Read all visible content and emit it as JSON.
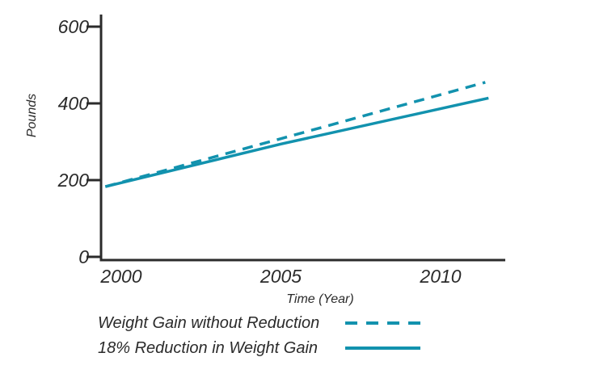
{
  "figure": {
    "x_axis_title": "Time (Year)",
    "y_axis_title": "Pounds"
  },
  "legend": [
    {
      "label": "Weight Gain without Reduction",
      "style": "dashed"
    },
    {
      "label": "18% Reduction in Weight Gain",
      "style": "solid"
    }
  ],
  "colors": {
    "line": "#1292ae",
    "axis": "#2b2b2b",
    "text": "#2b2b2b"
  },
  "chart_data": {
    "type": "line",
    "title": "",
    "xlabel": "Time (Year)",
    "ylabel": "Pounds",
    "x_ticks": [
      "2000",
      "2005",
      "2010"
    ],
    "x_tick_values": [
      2000,
      2005,
      2010
    ],
    "y_ticks": [
      "0",
      "200",
      "400",
      "600"
    ],
    "y_tick_values": [
      0,
      200,
      400,
      600
    ],
    "xlim": [
      1999.4,
      2012
    ],
    "ylim": [
      0,
      630
    ],
    "grid": false,
    "legend_position": "below-left",
    "series": [
      {
        "name": "Weight Gain without Reduction",
        "style": "dashed",
        "color": "#1292ae",
        "points": [
          [
            1999.5,
            183
          ],
          [
            2005,
            308
          ],
          [
            2011.4,
            455
          ]
        ]
      },
      {
        "name": "18% Reduction in Weight Gain",
        "style": "solid",
        "color": "#1292ae",
        "points": [
          [
            1999.5,
            183
          ],
          [
            2005,
            294
          ],
          [
            2011.5,
            414
          ]
        ]
      }
    ]
  }
}
